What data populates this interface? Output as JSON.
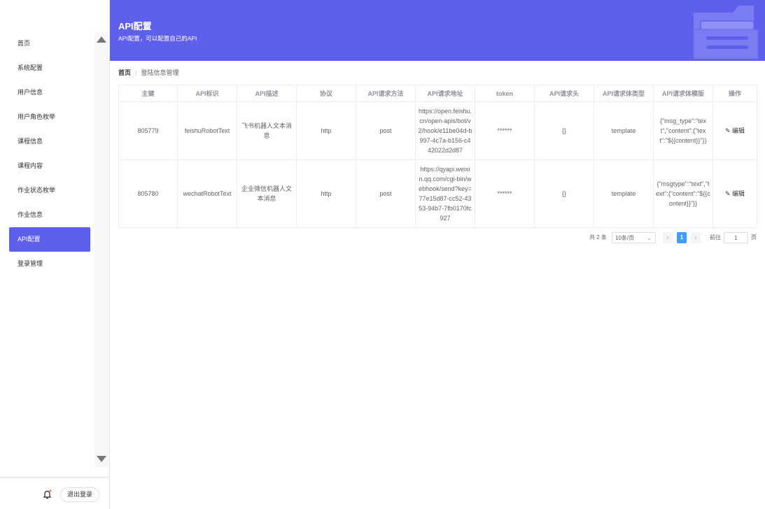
{
  "sidebar": {
    "items": [
      {
        "label": "首页"
      },
      {
        "label": "系统配置"
      },
      {
        "label": "用户信息"
      },
      {
        "label": "用户角色枚举"
      },
      {
        "label": "课程信息"
      },
      {
        "label": "课程内容"
      },
      {
        "label": "作业状态枚举"
      },
      {
        "label": "作业信息"
      },
      {
        "label": "API配置",
        "active": true
      },
      {
        "label": "登录管理"
      }
    ],
    "logout_label": "退出登录",
    "accent": "#5f5fee"
  },
  "header": {
    "title": "API配置",
    "subtitle": "API配置，可以配置自己的API",
    "background": "#5f5fee"
  },
  "breadcrumb": {
    "home": "首页",
    "current": "登陆信息管理"
  },
  "table": {
    "columns": [
      "主键",
      "API标识",
      "API描述",
      "协议",
      "API请求方法",
      "API请求地址",
      "token",
      "API请求头",
      "API请求体类型",
      "API请求体模版",
      "操作"
    ],
    "rows": [
      [
        "805779",
        "feishuRobotText",
        "飞书机器人文本消息",
        "http",
        "post",
        "https://open.feishu.cn/open-apis/bot/v2/hook/e11be04d-b997-4c7a-b156-c442022d2d87",
        "******",
        "{}",
        "template",
        "{\"msg_type\":\"text\",\"content\":{\"text\":\"${{content}}\"}}",
        "编辑"
      ],
      [
        "805780",
        "wechatRobotText",
        "企业微信机器人文本消息",
        "http",
        "post",
        "https://qyapi.weixin.qq.com/cgi-bin/webhook/send?key=77e15d87-cc52-4353-94b7-7fb0170fc927",
        "******",
        "{}",
        "template",
        "{\"msgtype\":\"text\",\"text\":{\"content\":\"${{content}}\"}}",
        "编辑"
      ]
    ]
  },
  "pagination": {
    "total": "共 2 条",
    "page_size": "10条/页",
    "current_page": "1",
    "goto_label": "前往",
    "goto_value": "1",
    "page_suffix": "页"
  }
}
